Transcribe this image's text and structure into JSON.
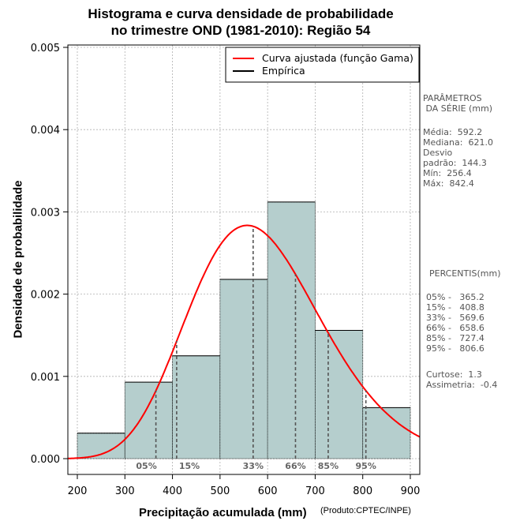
{
  "chart_data": {
    "type": "histogram",
    "title_line1": "Histograma e curva densidade de probabilidade",
    "title_line2": "no trimestre OND (1981-2010): Região 54",
    "xlabel": "Precipitação acumulada (mm)",
    "ylabel": "Densidade de probabilidade",
    "credit": "(Produto:CPTEC/INPE)",
    "xlim": [
      180,
      920
    ],
    "ylim": [
      0,
      0.005
    ],
    "x_ticks": [
      200,
      300,
      400,
      500,
      600,
      700,
      800,
      900
    ],
    "y_ticks": [
      "0.000",
      "0.001",
      "0.002",
      "0.003",
      "0.004",
      "0.005"
    ],
    "bins": [
      {
        "from": 200,
        "to": 300,
        "density": 0.00031
      },
      {
        "from": 300,
        "to": 400,
        "density": 0.00093
      },
      {
        "from": 400,
        "to": 500,
        "density": 0.00125
      },
      {
        "from": 500,
        "to": 600,
        "density": 0.00218
      },
      {
        "from": 600,
        "to": 700,
        "density": 0.00312
      },
      {
        "from": 700,
        "to": 800,
        "density": 0.00156
      },
      {
        "from": 800,
        "to": 900,
        "density": 0.00062
      }
    ],
    "fitted_curve": {
      "distribution": "gamma",
      "mean": 592.2,
      "sd": 144.3
    },
    "legend": [
      {
        "label": "Curva ajustada (função Gama)",
        "color": "#ff0000"
      },
      {
        "label": "Empírica",
        "color": "#000000"
      }
    ],
    "percentile_markers": [
      {
        "label": "05%",
        "x": 365.2
      },
      {
        "label": "15%",
        "x": 408.8
      },
      {
        "label": "33%",
        "x": 569.6
      },
      {
        "label": "66%",
        "x": 658.6
      },
      {
        "label": "85%",
        "x": 727.4
      },
      {
        "label": "95%",
        "x": 806.6
      }
    ],
    "colors": {
      "bar_fill": "#b5cecd",
      "curve": "#ff0000",
      "grid": "#b0b0b0",
      "marker": "#555555"
    }
  },
  "sidebar": {
    "params_title_line1": "PARÂMETROS",
    "params_title_line2": " DA SÉRIE (mm)",
    "stats": [
      "Média:  592.2",
      "Mediana:  621.0",
      "Desvio",
      "padrão:  144.3",
      "Mín:  256.4",
      "Máx:  842.4"
    ],
    "percentis_title": "PERCENTIS(mm)",
    "percentis": [
      "05% -   365.2",
      "15% -   408.8",
      "33% -   569.6",
      "66% -   658.6",
      "85% -   727.4",
      "95% -   806.6"
    ],
    "moments": [
      "Curtose:  1.3",
      "Assimetria:  -0.4"
    ]
  }
}
